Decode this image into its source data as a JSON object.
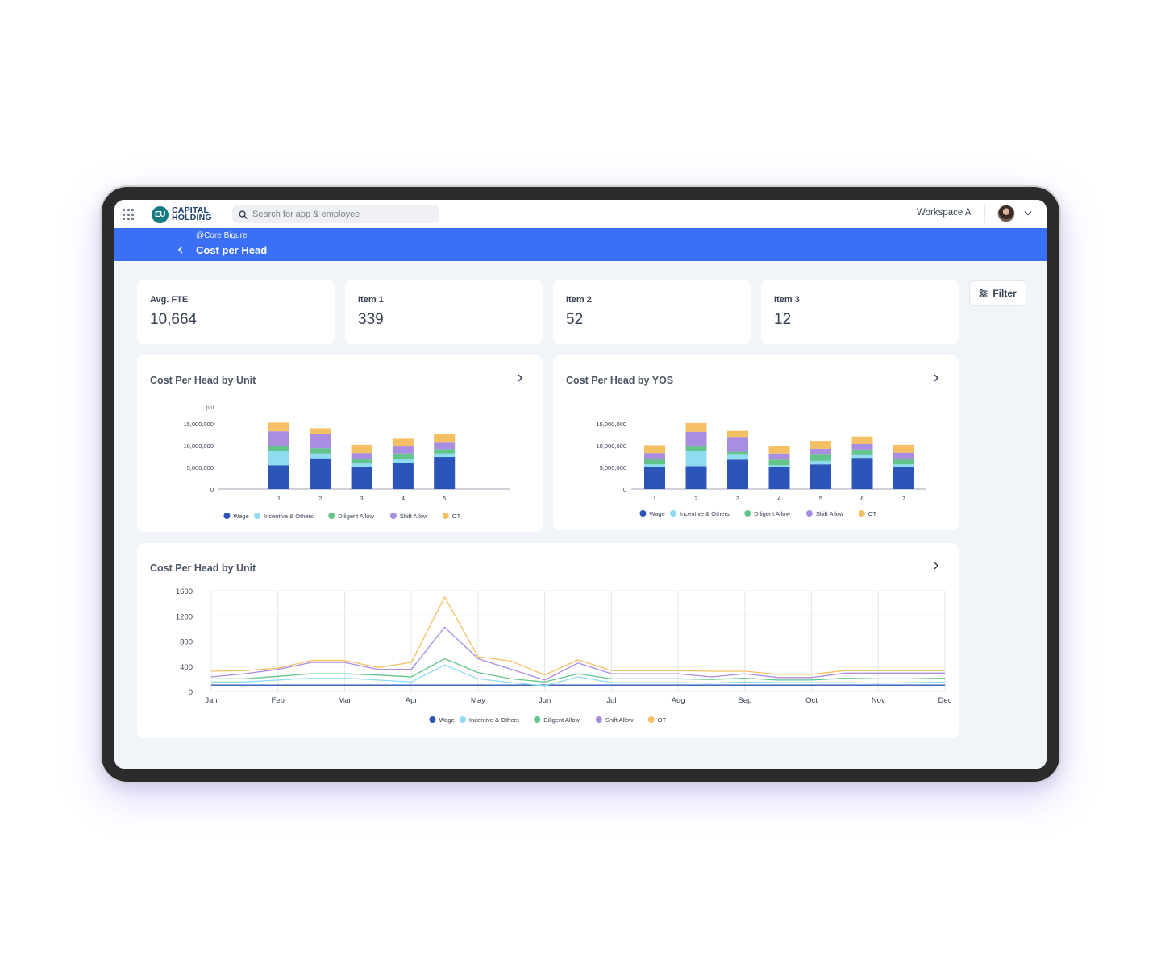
{
  "topbar": {
    "logo_mark": "EU",
    "logo_line1": "CAPITAL",
    "logo_line2": "HOLDING",
    "search_placeholder": "Search for app & employee",
    "workspace": "Workspace A"
  },
  "header": {
    "breadcrumb": "@Core Bigure",
    "title": "Cost per Head"
  },
  "stats": [
    {
      "label": "Avg. FTE",
      "value": "10,664"
    },
    {
      "label": "Item 1",
      "value": "339"
    },
    {
      "label": "Item 2",
      "value": "52"
    },
    {
      "label": "Item 3",
      "value": "12"
    }
  ],
  "filter_label": "Filter",
  "colors": {
    "Wage": "#2b55b8",
    "Incentive & Others": "#8fdcf2",
    "Diligent Allow": "#63c48c",
    "Shift Allow": "#a98de0",
    "OT": "#f5c063"
  },
  "chart_data": [
    {
      "type": "bar",
      "stacked": true,
      "title": "Cost Per Head by Unit",
      "ylabel": "ppl",
      "ylim": [
        0,
        15000000
      ],
      "yticks": [
        0,
        5000000,
        10000000,
        15000000
      ],
      "ytick_labels": [
        "0",
        "5,000,000",
        "10,000,000",
        "15,000,000"
      ],
      "categories": [
        "1",
        "2",
        "3",
        "4",
        "5"
      ],
      "series": [
        {
          "name": "Wage",
          "values": [
            5500000,
            7100000,
            5100000,
            6100000,
            7400000
          ]
        },
        {
          "name": "Incentive & Others",
          "values": [
            3200000,
            1100000,
            900000,
            800000,
            800000
          ]
        },
        {
          "name": "Diligent Allow",
          "values": [
            1200000,
            1200000,
            900000,
            1300000,
            1000000
          ]
        },
        {
          "name": "Shift Allow",
          "values": [
            3400000,
            3200000,
            1400000,
            1600000,
            1500000
          ]
        },
        {
          "name": "OT",
          "values": [
            2000000,
            1400000,
            1900000,
            1800000,
            1900000
          ]
        }
      ],
      "legend": "bottom"
    },
    {
      "type": "bar",
      "stacked": true,
      "title": "Cost Per Head by YOS",
      "ylim": [
        0,
        15000000
      ],
      "yticks": [
        0,
        5000000,
        10000000,
        15000000
      ],
      "ytick_labels": [
        "0",
        "5,000,000",
        "10,000,000",
        "15,000,000"
      ],
      "categories": [
        "1",
        "2",
        "3",
        "4",
        "5",
        "6",
        "7"
      ],
      "series": [
        {
          "name": "Wage",
          "values": [
            5000000,
            5300000,
            6800000,
            5000000,
            5700000,
            7200000,
            5000000
          ]
        },
        {
          "name": "Incentive & Others",
          "values": [
            700000,
            3400000,
            1100000,
            500000,
            800000,
            600000,
            700000
          ]
        },
        {
          "name": "Diligent Allow",
          "values": [
            1200000,
            1100000,
            700000,
            1300000,
            1400000,
            1300000,
            1300000
          ]
        },
        {
          "name": "Shift Allow",
          "values": [
            1400000,
            3400000,
            3400000,
            1400000,
            1400000,
            1300000,
            1400000
          ]
        },
        {
          "name": "OT",
          "values": [
            1800000,
            2000000,
            1400000,
            1800000,
            1800000,
            1700000,
            1800000
          ]
        }
      ],
      "legend": "bottom"
    },
    {
      "type": "line",
      "title": "Cost Per Head by Unit",
      "ylim": [
        0,
        1600
      ],
      "yticks": [
        0,
        400,
        800,
        1200,
        1600
      ],
      "x_labels": [
        "Jan",
        "Feb",
        "Mar",
        "Apr",
        "May",
        "Jun",
        "Jul",
        "Aug",
        "Sep",
        "Oct",
        "Nov",
        "Dec"
      ],
      "x": [
        0,
        0.5,
        1,
        1.5,
        2,
        2.5,
        3,
        3.5,
        4,
        4.5,
        5,
        5.5,
        6,
        6.5,
        7,
        7.5,
        8,
        8.5,
        9,
        9.5,
        10,
        10.5,
        11
      ],
      "series": [
        {
          "name": "Wage",
          "values": [
            100,
            100,
            100,
            100,
            100,
            100,
            100,
            100,
            100,
            100,
            100,
            100,
            100,
            100,
            100,
            100,
            100,
            100,
            100,
            100,
            100,
            100,
            100
          ]
        },
        {
          "name": "Incentive & Others",
          "values": [
            150,
            150,
            180,
            210,
            210,
            180,
            150,
            420,
            200,
            140,
            90,
            230,
            140,
            140,
            140,
            130,
            150,
            140,
            140,
            140,
            130,
            140,
            150
          ]
        },
        {
          "name": "Diligent Allow",
          "values": [
            200,
            200,
            240,
            280,
            280,
            260,
            230,
            520,
            300,
            200,
            150,
            280,
            200,
            200,
            200,
            190,
            210,
            180,
            180,
            210,
            200,
            200,
            210
          ]
        },
        {
          "name": "Shift Allow",
          "values": [
            230,
            280,
            350,
            460,
            460,
            350,
            350,
            1020,
            520,
            350,
            180,
            450,
            280,
            280,
            280,
            230,
            280,
            220,
            220,
            290,
            290,
            290,
            290
          ]
        },
        {
          "name": "OT",
          "values": [
            320,
            330,
            370,
            490,
            490,
            380,
            460,
            1500,
            550,
            480,
            260,
            500,
            330,
            330,
            330,
            320,
            320,
            270,
            270,
            330,
            330,
            330,
            330
          ]
        }
      ],
      "legend": "bottom",
      "grid": true
    }
  ]
}
